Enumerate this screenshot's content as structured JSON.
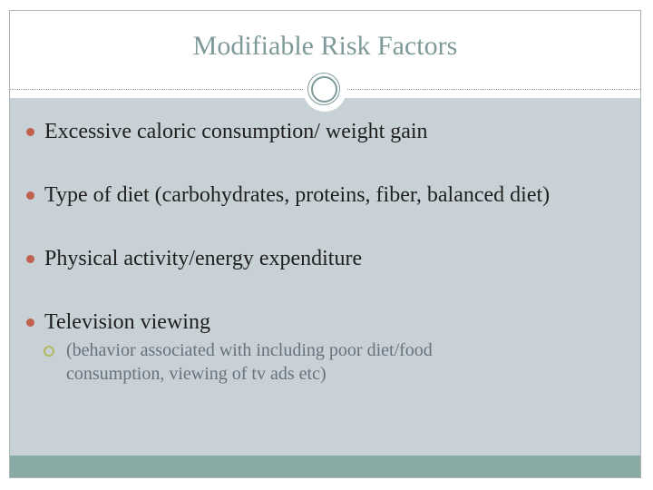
{
  "slide": {
    "title": "Modifiable Risk Factors",
    "bullets": [
      {
        "text": "Excessive caloric consumption/ weight gain"
      },
      {
        "text": "Type of diet (carbohydrates, proteins, fiber, balanced diet)"
      },
      {
        "text": "Physical activity/energy expenditure"
      },
      {
        "text": "Television viewing",
        "sub": [
          "(behavior associated with including poor diet/food consumption, viewing of tv ads etc)"
        ]
      }
    ],
    "colors": {
      "title_text": "#7d9a99",
      "body_text": "#1f1f1f",
      "bullet_dot": "#c0604e",
      "sub_bullet_ring": "#b4b85f",
      "sub_bullet_text": "#68727f",
      "content_background": "#c8d1d5",
      "bottom_accent_band": "#89a9a5",
      "ornament_ring": "#7e9a9a",
      "frame_border": "#aab3b2"
    }
  }
}
